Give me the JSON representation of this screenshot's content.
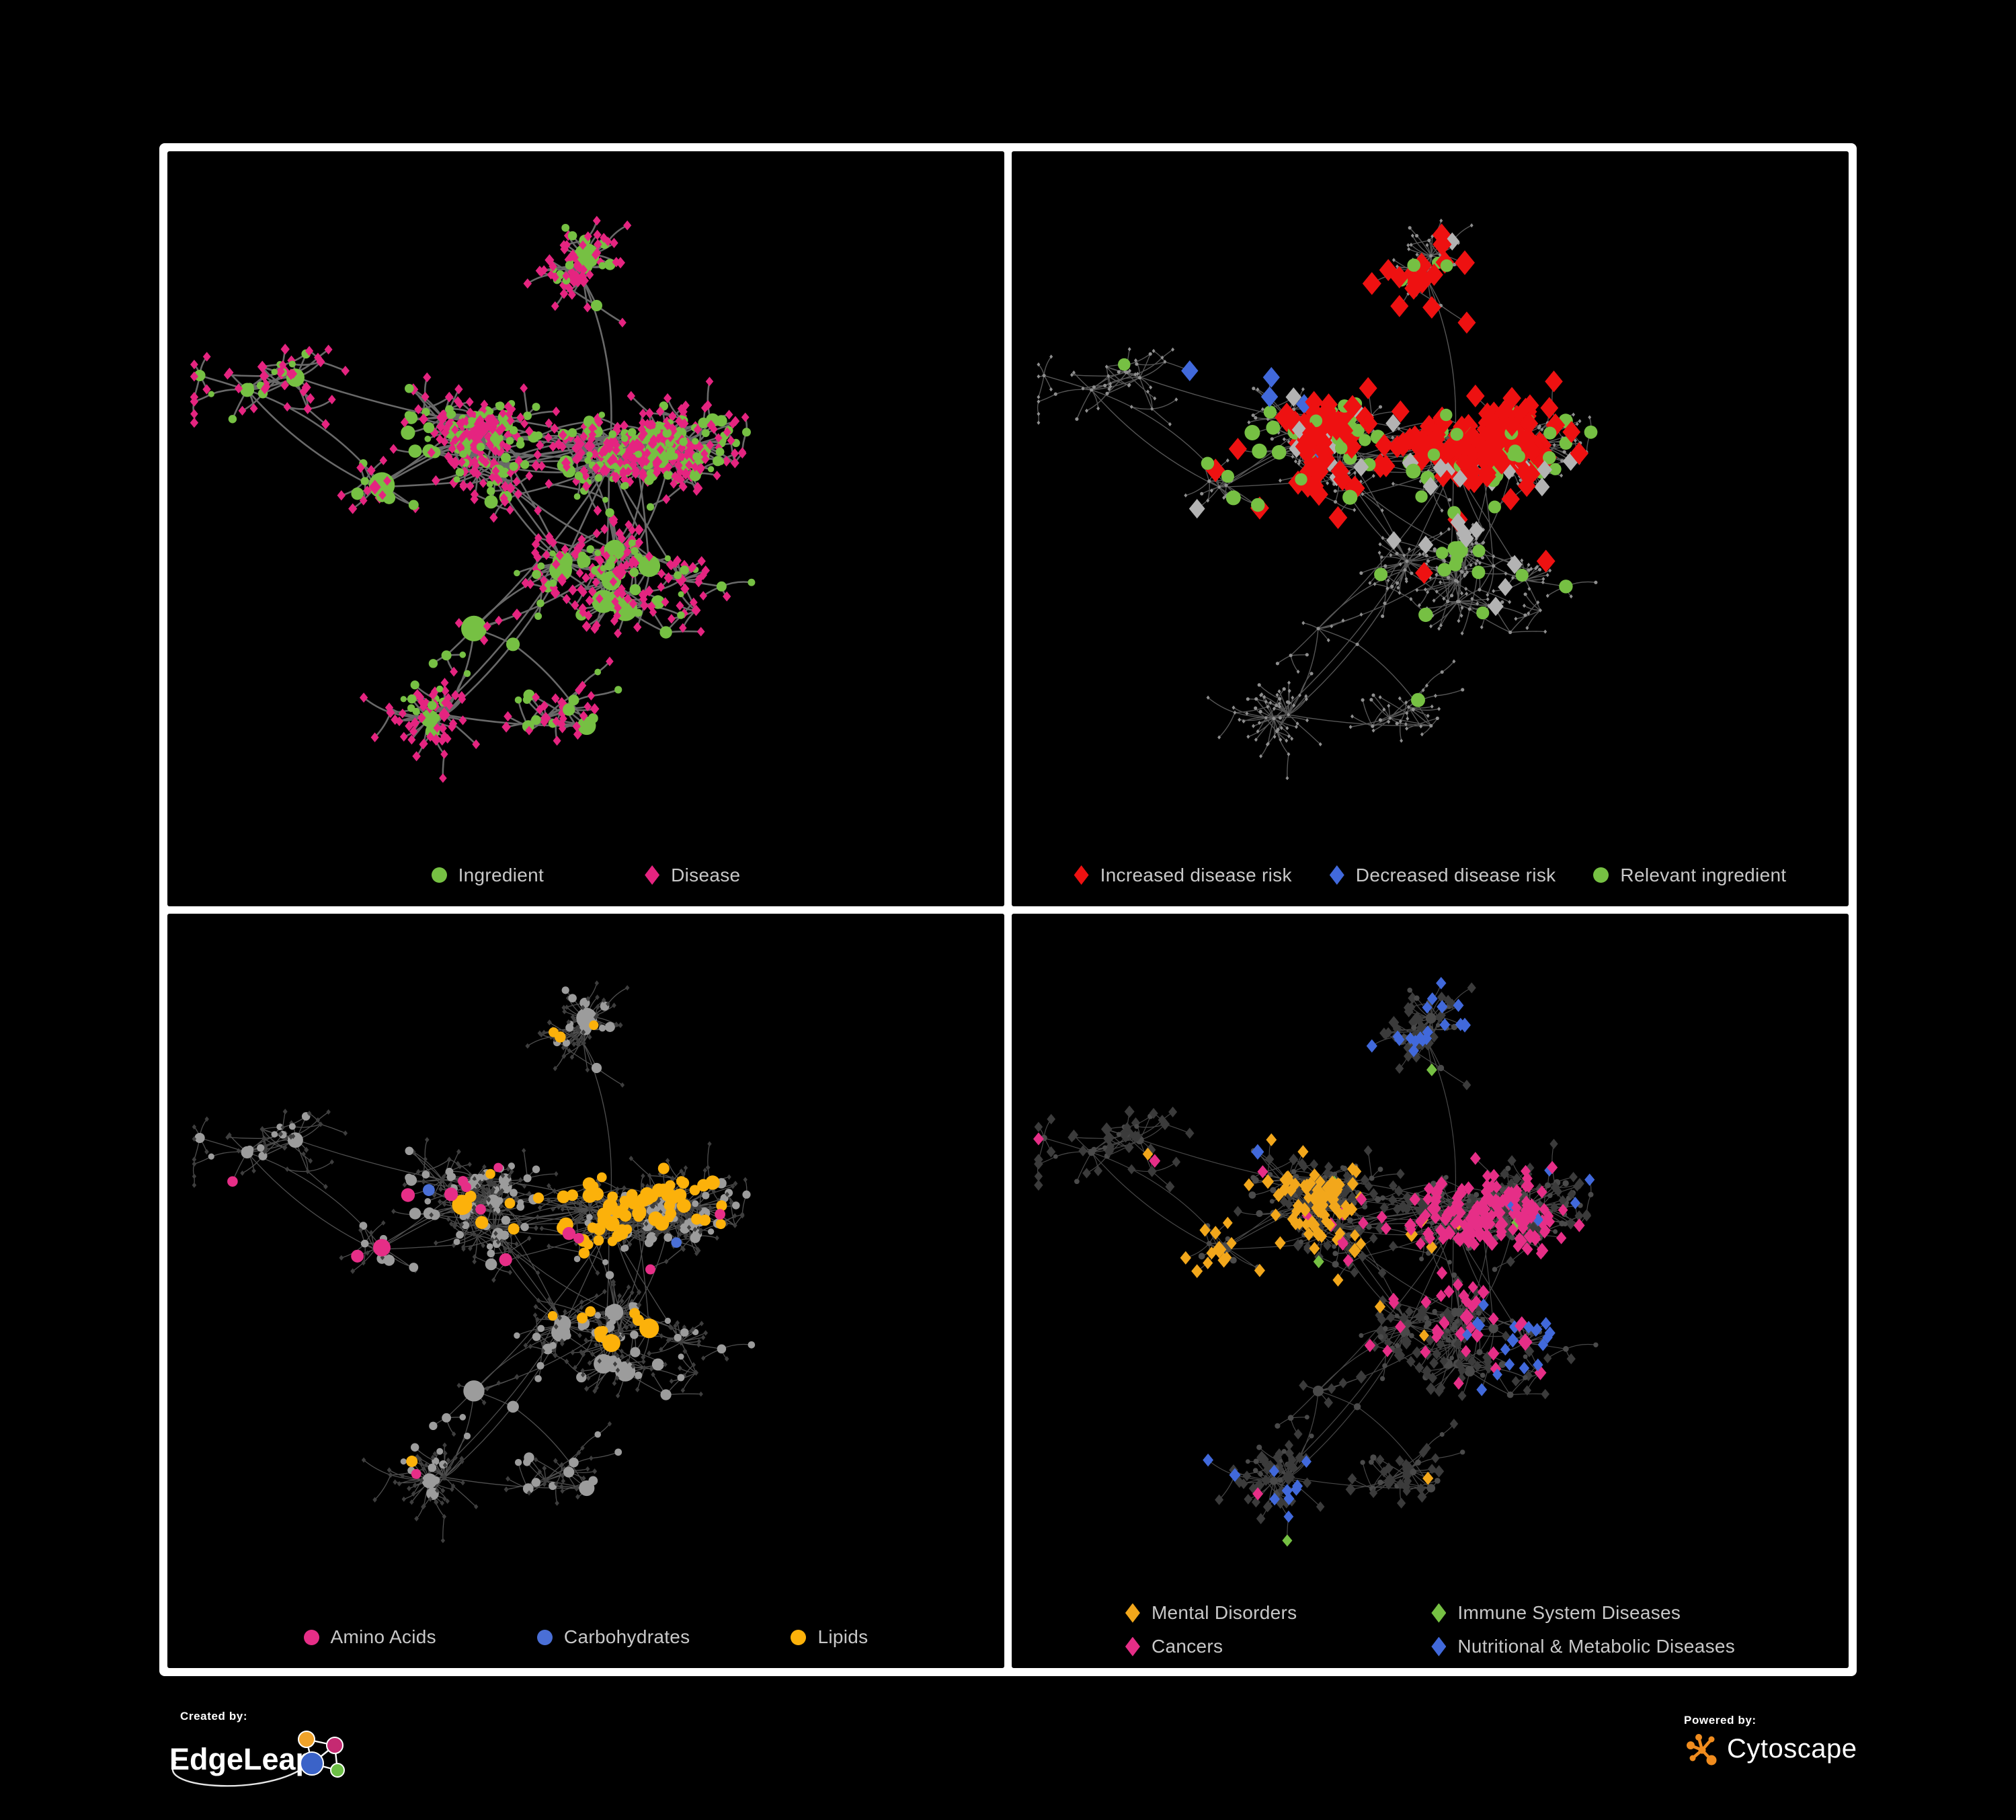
{
  "figure": {
    "background": "#000000",
    "frame_background": "#ffffff",
    "panel_background": "#000000"
  },
  "legend_text_color": "#C8C8C8",
  "branding": {
    "created_by_label": "Created by:",
    "created_by_name": "EdgeLeap",
    "powered_by_label": "Powered by:",
    "powered_by_name": "Cytoscape",
    "edgeleap_colors": {
      "blue": "#3B63C8",
      "orange": "#F0A32A",
      "magenta": "#C52A72",
      "green": "#6CBE45"
    },
    "cytoscape_orange": "#F08C1E"
  },
  "graph": {
    "seed": 7,
    "clusters": 13,
    "dense_clusters": 3,
    "extra_links": 26
  },
  "panels": [
    {
      "id": "ingredient-disease",
      "seed": 3,
      "legend": {
        "layout": "row",
        "items": [
          {
            "label": "Ingredient",
            "shape": "circle",
            "color": "#76C043"
          },
          {
            "label": "Disease",
            "shape": "diamond",
            "color": "#E52480"
          }
        ]
      },
      "style": {
        "edge": {
          "color": "#6F6F6F",
          "width": 2.6,
          "opacity": 0.95
        },
        "circle": {
          "fill": "#76C043",
          "mul": 1.1,
          "add": 2,
          "max": 24
        },
        "diamond": {
          "fill": "#E52480",
          "mul": 0.35,
          "add": 6.2,
          "max": 11
        }
      },
      "highlights": []
    },
    {
      "id": "disease-risk",
      "seed": 11,
      "legend": {
        "layout": "row",
        "items": [
          {
            "label": "Increased disease risk",
            "shape": "diamond",
            "color": "#EE1111"
          },
          {
            "label": "Decreased disease risk",
            "shape": "diamond",
            "color": "#4169DB"
          },
          {
            "label": "Relevant ingredient",
            "shape": "circle",
            "color": "#76C043"
          }
        ]
      },
      "style": {
        "edge": {
          "color": "#646464",
          "width": 1.4,
          "opacity": 0.85
        },
        "circle": {
          "fill": "#8F8F8F",
          "mul": 0,
          "add": 2.6,
          "max": 2.6
        },
        "diamond": {
          "fill": "#8F8F8F",
          "mul": 0,
          "add": 3.1,
          "max": 3.1
        }
      },
      "highlights": [
        {
          "shape": "diamond",
          "color": "#EE1111",
          "size": {
            "mul": 0.5,
            "add": 15,
            "max": 22
          },
          "uniform": 0.002,
          "attractors": [
            [
              0.44,
              0.3,
              0.1,
              0.9
            ],
            [
              0.58,
              0.38,
              0.07,
              0.8
            ],
            [
              0.33,
              0.55,
              0.05,
              0.5
            ],
            [
              0.74,
              0.6,
              0.045,
              0.9
            ]
          ]
        },
        {
          "shape": "diamond",
          "color": "#4169DB",
          "size": {
            "mul": 0.4,
            "add": 14,
            "max": 19
          },
          "uniform": 0.0012,
          "attractors": [
            [
              0.27,
              0.33,
              0.045,
              0.9
            ],
            [
              0.86,
              0.27,
              0.04,
              1.0
            ]
          ]
        },
        {
          "shape": "diamond",
          "color": "#B3B3B3",
          "size": {
            "mul": 0.4,
            "add": 12.5,
            "max": 17
          },
          "uniform": 0.0025,
          "attractors": [
            [
              0.4,
              0.4,
              0.09,
              0.22
            ],
            [
              0.56,
              0.52,
              0.06,
              0.2
            ]
          ]
        },
        {
          "shape": "circle",
          "color": "#76C043",
          "size": {
            "mul": 0.45,
            "add": 8,
            "max": 14
          },
          "uniform": 0.012,
          "attractors": [
            [
              0.42,
              0.33,
              0.13,
              0.5
            ],
            [
              0.6,
              0.52,
              0.1,
              0.3
            ],
            [
              0.24,
              0.45,
              0.1,
              0.2
            ]
          ]
        }
      ]
    },
    {
      "id": "nutrient-classes",
      "seed": 23,
      "legend": {
        "layout": "row",
        "items": [
          {
            "label": "Amino Acids",
            "shape": "circle",
            "color": "#E62E87"
          },
          {
            "label": "Carbohydrates",
            "shape": "circle",
            "color": "#4A6FD6"
          },
          {
            "label": "Lipids",
            "shape": "circle",
            "color": "#FCB10A"
          }
        ]
      },
      "style": {
        "edge": {
          "color": "#8F8F8F",
          "width": 1.3,
          "opacity": 0.55
        },
        "circle": {
          "fill": "#9C9C9C",
          "mul": 0.85,
          "add": 2.6,
          "max": 16
        },
        "diamond": {
          "fill": "#3E3E3E",
          "mul": 0.12,
          "add": 3.6,
          "max": 5.5
        }
      },
      "highlights": [
        {
          "shape": "circle",
          "color": "#FCB10A",
          "size": {
            "mul": 0.7,
            "add": 5.5,
            "max": 15
          },
          "uniform": 0.02,
          "attractors": [
            [
              0.6,
              0.33,
              0.07,
              1.0
            ],
            [
              0.5,
              0.43,
              0.06,
              0.55
            ],
            [
              0.43,
              0.25,
              0.05,
              0.5
            ],
            [
              0.56,
              0.6,
              0.05,
              0.35
            ]
          ]
        },
        {
          "shape": "circle",
          "color": "#4A6FD6",
          "size": {
            "mul": 0.6,
            "add": 5.5,
            "max": 13
          },
          "uniform": 0.006,
          "attractors": [
            [
              0.585,
              0.345,
              0.05,
              0.5
            ],
            [
              0.3,
              0.3,
              0.045,
              0.3
            ]
          ]
        },
        {
          "shape": "circle",
          "color": "#E62E87",
          "size": {
            "mul": 0.6,
            "add": 5.5,
            "max": 13
          },
          "uniform": 0.03,
          "attractors": [
            [
              0.15,
              0.45,
              0.1,
              0.15
            ],
            [
              0.75,
              0.55,
              0.1,
              0.12
            ]
          ]
        }
      ]
    },
    {
      "id": "disease-categories",
      "seed": 37,
      "legend": {
        "layout": "grid",
        "items": [
          {
            "label": "Mental Disorders",
            "shape": "diamond",
            "color": "#F2A71B"
          },
          {
            "label": "Immune System Diseases",
            "shape": "diamond",
            "color": "#76C043"
          },
          {
            "label": "Cancers",
            "shape": "diamond",
            "color": "#E62E87"
          },
          {
            "label": "Nutritional & Metabolic Diseases",
            "shape": "diamond",
            "color": "#4169DB"
          }
        ]
      },
      "style": {
        "edge": {
          "color": "#9E9E9E",
          "width": 1.2,
          "opacity": 0.45
        },
        "circle": {
          "fill": "#4A4A4A",
          "mul": 0.35,
          "add": 2.6,
          "max": 8
        },
        "diamond": {
          "fill": "#3B3B3B",
          "mul": 0.45,
          "add": 6.5,
          "max": 12
        }
      },
      "highlights": [
        {
          "shape": "diamond",
          "color": "#F2A71B",
          "size": {
            "mul": 0.45,
            "add": 8,
            "max": 13
          },
          "uniform": 0.006,
          "attractors": [
            [
              0.27,
              0.52,
              0.085,
              1.0
            ],
            [
              0.36,
              0.4,
              0.05,
              0.4
            ],
            [
              0.2,
              0.16,
              0.1,
              0.12
            ]
          ]
        },
        {
          "shape": "diamond",
          "color": "#E62E87",
          "size": {
            "mul": 0.45,
            "add": 8,
            "max": 13
          },
          "uniform": 0.008,
          "attractors": [
            [
              0.52,
              0.5,
              0.08,
              0.8
            ],
            [
              0.61,
              0.42,
              0.06,
              0.5
            ],
            [
              0.85,
              0.25,
              0.05,
              0.7
            ]
          ]
        },
        {
          "shape": "diamond",
          "color": "#4169DB",
          "size": {
            "mul": 0.45,
            "add": 8,
            "max": 13
          },
          "uniform": 0.012,
          "attractors": [
            [
              0.63,
              0.62,
              0.05,
              0.8
            ],
            [
              0.78,
              0.45,
              0.08,
              0.45
            ],
            [
              0.55,
              0.12,
              0.1,
              0.3
            ],
            [
              0.9,
              0.6,
              0.06,
              0.3
            ],
            [
              0.3,
              0.82,
              0.08,
              0.25
            ]
          ]
        },
        {
          "shape": "diamond",
          "color": "#76C043",
          "size": {
            "mul": 0.45,
            "add": 8,
            "max": 13
          },
          "uniform": 0.007,
          "attractors": [
            [
              0.5,
              0.3,
              0.2,
              0.02
            ]
          ]
        }
      ]
    }
  ]
}
